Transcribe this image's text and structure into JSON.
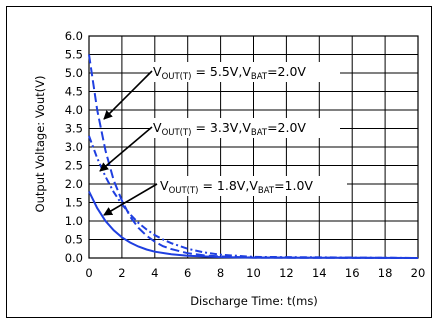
{
  "chart_data": {
    "type": "line",
    "xlabel": "Discharge Time: t(ms)",
    "ylabel": "Output Voltage: Vout(V)",
    "xlim": [
      0,
      20
    ],
    "ylim": [
      0,
      6
    ],
    "xticks": [
      0,
      2,
      4,
      6,
      8,
      10,
      12,
      14,
      16,
      18,
      20
    ],
    "yticks": [
      0.0,
      0.5,
      1.0,
      1.5,
      2.0,
      2.5,
      3.0,
      3.5,
      4.0,
      4.5,
      5.0,
      5.5,
      6.0
    ],
    "xtick_labels": [
      "0",
      "2",
      "4",
      "6",
      "8",
      "10",
      "12",
      "14",
      "16",
      "18",
      "20"
    ],
    "ytick_labels": [
      "0.0",
      "0.5",
      "1.0",
      "1.5",
      "2.0",
      "2.5",
      "3.0",
      "3.5",
      "4.0",
      "4.5",
      "5.0",
      "5.5",
      "6.0"
    ],
    "grid": true,
    "series": [
      {
        "name": "V_OUT(T) = 5.5V, V_BAT = 2.0V",
        "style": "dashed",
        "x": [
          0,
          0.5,
          1,
          1.5,
          2,
          2.5,
          3,
          3.5,
          4,
          4.5,
          5,
          6,
          7,
          8,
          10,
          20
        ],
        "y": [
          5.5,
          4.0,
          2.9,
          2.1,
          1.55,
          1.12,
          0.82,
          0.6,
          0.44,
          0.32,
          0.24,
          0.13,
          0.07,
          0.04,
          0.01,
          0.0
        ]
      },
      {
        "name": "V_OUT(T) = 3.3V, V_BAT = 2.0V",
        "style": "dash-dot",
        "x": [
          0,
          0.5,
          1,
          1.5,
          2,
          2.5,
          3,
          3.5,
          4,
          4.5,
          5,
          6,
          7,
          8,
          10,
          20
        ],
        "y": [
          3.3,
          2.7,
          2.2,
          1.78,
          1.45,
          1.18,
          0.95,
          0.77,
          0.62,
          0.5,
          0.4,
          0.25,
          0.15,
          0.09,
          0.03,
          0.0
        ]
      },
      {
        "name": "V_OUT(T) = 1.8V, V_BAT = 1.0V",
        "style": "solid",
        "x": [
          0,
          0.5,
          1,
          1.5,
          2,
          2.5,
          3,
          3.5,
          4,
          5,
          6,
          8,
          10,
          20
        ],
        "y": [
          1.8,
          1.35,
          1.0,
          0.75,
          0.56,
          0.42,
          0.31,
          0.23,
          0.17,
          0.1,
          0.06,
          0.025,
          0.01,
          0.0
        ]
      }
    ],
    "annotations": [
      {
        "main": "V",
        "sub1": "OUT(T)",
        "mid": " = 5.5V,V",
        "sub2": "BAT",
        "end": "=2.0V"
      },
      {
        "main": "V",
        "sub1": "OUT(T)",
        "mid": " = 3.3V,V",
        "sub2": "BAT",
        "end": "=2.0V"
      },
      {
        "main": "V",
        "sub1": "OUT(T)",
        "mid": " = 1.8V,V",
        "sub2": "BAT",
        "end": "=1.0V"
      }
    ],
    "colors": {
      "line": "#1f3fe0",
      "grid": "#000000"
    }
  }
}
